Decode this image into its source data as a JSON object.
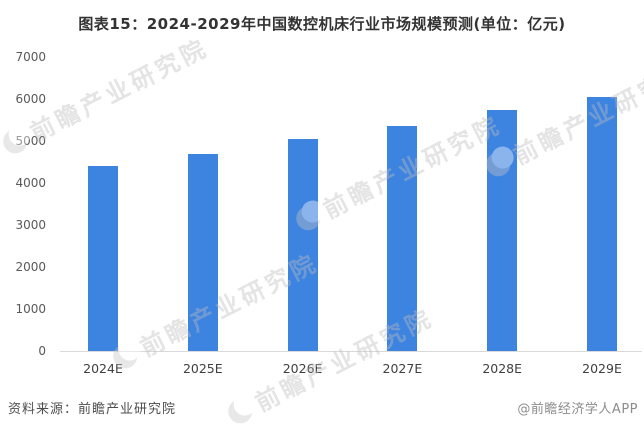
{
  "title": "图表15：2024-2029年中国数控机床行业市场规模预测(单位：亿元)",
  "chart_data": {
    "type": "bar",
    "title": "图表15：2024-2029年中国数控机床行业市场规模预测(单位：亿元)",
    "categories": [
      "2024E",
      "2025E",
      "2026E",
      "2027E",
      "2028E",
      "2029E"
    ],
    "values": [
      4400,
      4700,
      5050,
      5350,
      5750,
      6050
    ],
    "unit": "亿元",
    "xlabel": "",
    "ylabel": "",
    "ylim": [
      0,
      7000
    ],
    "ytick_step": 1000,
    "grid": false,
    "legend": false,
    "bar_color": "#3D83E0"
  },
  "watermark": {
    "text": "前瞻产业研究院"
  },
  "footer": {
    "source": "资料来源：前瞻产业研究院",
    "credit": "@前瞻经济学人APP"
  },
  "colors": {
    "bar": "#3D83E0",
    "axis_line": "#d9d9d9",
    "tick_label": "#595959",
    "category_label": "#404040",
    "title": "#333333",
    "source_text": "#4d4d4d",
    "credit_text": "#8c8c8c",
    "watermark": "#bdbdbd"
  }
}
